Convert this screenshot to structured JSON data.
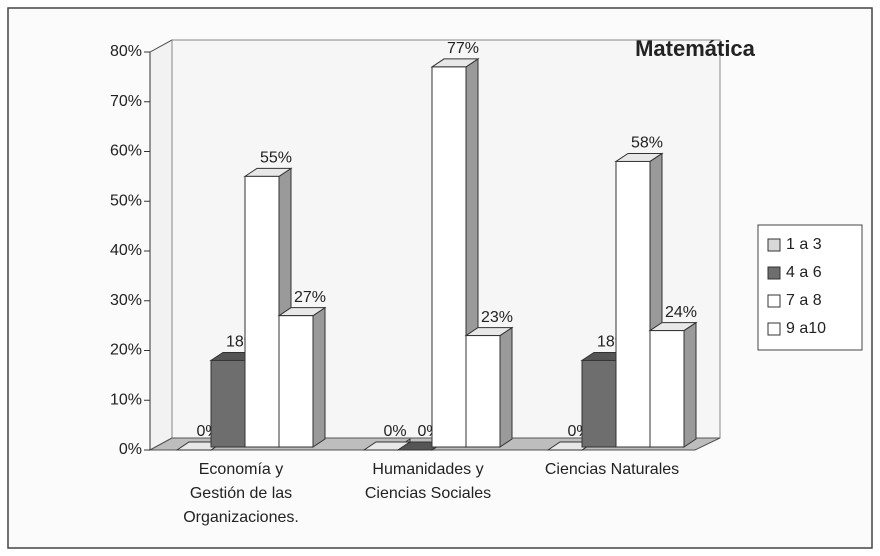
{
  "chart_data": {
    "type": "bar3d",
    "title": "Matemática",
    "categories": [
      "Economía y\nGestión de las\nOrganizaciones.",
      "Humanidades y\nCiencias Sociales",
      "Ciencias Naturales"
    ],
    "series": [
      {
        "name": "1 a 3",
        "color": "#d8d8d8",
        "values": [
          0,
          0,
          0
        ],
        "value_labels": [
          "0%",
          "0%",
          "0%"
        ]
      },
      {
        "name": "4 a 6",
        "color": "#6e6e6e",
        "values": [
          18,
          0,
          18
        ],
        "value_labels": [
          "18%",
          "0%",
          "18%"
        ]
      },
      {
        "name": "7 a 8",
        "color": "#ffffff",
        "values": [
          55,
          77,
          58
        ],
        "value_labels": [
          "55%",
          "77%",
          "58%"
        ]
      },
      {
        "name": "9 a10",
        "color": "#ffffff",
        "values": [
          27,
          23,
          24
        ],
        "value_labels": [
          "27%",
          "23%",
          "24%"
        ]
      }
    ],
    "ylim": [
      0,
      80
    ],
    "yticks": [
      {
        "value": 0,
        "label": "0%"
      },
      {
        "value": 10,
        "label": "10%"
      },
      {
        "value": 20,
        "label": "20%"
      },
      {
        "value": 30,
        "label": "30%"
      },
      {
        "value": 40,
        "label": "40%"
      },
      {
        "value": 50,
        "label": "50%"
      },
      {
        "value": 60,
        "label": "60%"
      },
      {
        "value": 70,
        "label": "70%"
      },
      {
        "value": 80,
        "label": "80%"
      }
    ],
    "grid": false,
    "legend": "right"
  }
}
